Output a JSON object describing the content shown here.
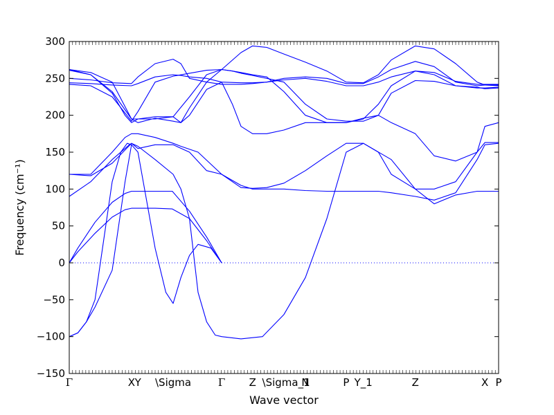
{
  "chart_data": {
    "type": "line",
    "title": "",
    "xlabel": "Wave vector",
    "ylabel": "Frequency (cm⁻¹)",
    "ylim": [
      -150,
      300
    ],
    "xlim": [
      0,
      1
    ],
    "yticks": [
      -150,
      -100,
      -50,
      0,
      50,
      100,
      150,
      200,
      250,
      300
    ],
    "x_labels": [
      {
        "label": "Γ",
        "x": 0.0
      },
      {
        "label": "X",
        "x": 0.145
      },
      {
        "label": "Y",
        "x": 0.16
      },
      {
        "label": "\\Sigma",
        "x": 0.242
      },
      {
        "label": "Γ",
        "x": 0.355
      },
      {
        "label": "Z",
        "x": 0.427
      },
      {
        "label": "\\Sigma_1",
        "x": 0.505
      },
      {
        "label": "N",
        "x": 0.55
      },
      {
        "label": "P",
        "x": 0.645
      },
      {
        "label": "Y_1",
        "x": 0.685
      },
      {
        "label": "Z",
        "x": 0.806
      },
      {
        "label": "X",
        "x": 0.968
      },
      {
        "label": "P",
        "x": 1.0
      }
    ],
    "zero_line": true,
    "line_color": "#0000ff",
    "series": [
      {
        "x": [
          0,
          0.02,
          0.06,
          0.1,
          0.13,
          0.145,
          0.16,
          0.2,
          0.24,
          0.28,
          0.32,
          0.355
        ],
        "values": [
          0,
          15,
          40,
          62,
          72,
          74,
          74,
          74,
          73,
          60,
          30,
          0
        ]
      },
      {
        "x": [
          0,
          0.02,
          0.06,
          0.1,
          0.13,
          0.145,
          0.16,
          0.2,
          0.24,
          0.28,
          0.32,
          0.355
        ],
        "values": [
          0,
          20,
          55,
          82,
          94,
          97,
          97,
          97,
          97,
          70,
          35,
          0
        ]
      },
      {
        "x": [
          0,
          0.02,
          0.04,
          0.06,
          0.1,
          0.13,
          0.145,
          0.16,
          0.2,
          0.225,
          0.242,
          0.26,
          0.28,
          0.3,
          0.33,
          0.355
        ],
        "values": [
          -100,
          -95,
          -80,
          -60,
          -10,
          110,
          160,
          150,
          20,
          -40,
          -55,
          -20,
          10,
          25,
          20,
          0
        ]
      },
      {
        "x": [
          0,
          0.02,
          0.04,
          0.06,
          0.08,
          0.1,
          0.12,
          0.135,
          0.145
        ],
        "values": [
          -100,
          -95,
          -80,
          -50,
          30,
          110,
          150,
          162,
          160
        ]
      },
      {
        "x": [
          0,
          0.05,
          0.1,
          0.14,
          0.145,
          0.16,
          0.2,
          0.242,
          0.26,
          0.28,
          0.3,
          0.32,
          0.34,
          0.355,
          0.4,
          0.45,
          0.5,
          0.55,
          0.6,
          0.645,
          0.685,
          0.75,
          0.806,
          0.85,
          0.9,
          0.95,
          0.968,
          1.0
        ],
        "values": [
          90,
          110,
          140,
          160,
          162,
          158,
          140,
          120,
          100,
          60,
          -40,
          -80,
          -98,
          -100,
          -103,
          -100,
          -70,
          -20,
          60,
          150,
          162,
          140,
          100,
          80,
          92,
          97,
          97,
          97
        ]
      },
      {
        "x": [
          0,
          0.05,
          0.1,
          0.13,
          0.145,
          0.16,
          0.2,
          0.242,
          0.26,
          0.3,
          0.355,
          0.4,
          0.427,
          0.46,
          0.5,
          0.55,
          0.6,
          0.645,
          0.685,
          0.72,
          0.75,
          0.806,
          0.85,
          0.9,
          0.95,
          0.968,
          1.0
        ],
        "values": [
          120,
          120,
          150,
          170,
          175,
          175,
          170,
          162,
          158,
          150,
          120,
          105,
          100,
          100,
          100,
          98,
          97,
          97,
          97,
          97,
          95,
          90,
          85,
          95,
          140,
          160,
          162
        ]
      },
      {
        "x": [
          0,
          0.05,
          0.1,
          0.145,
          0.16,
          0.2,
          0.242,
          0.28,
          0.32,
          0.355,
          0.38,
          0.4,
          0.427,
          0.46,
          0.5,
          0.55,
          0.6,
          0.645,
          0.685,
          0.72,
          0.75,
          0.806,
          0.85,
          0.9,
          0.95,
          0.968,
          1.0
        ],
        "values": [
          120,
          118,
          135,
          162,
          155,
          160,
          160,
          150,
          125,
          120,
          110,
          102,
          101,
          102,
          108,
          125,
          145,
          162,
          162,
          150,
          120,
          100,
          100,
          110,
          150,
          163,
          163
        ]
      },
      {
        "x": [
          0,
          0.05,
          0.1,
          0.13,
          0.145,
          0.16,
          0.2,
          0.242,
          0.28,
          0.32,
          0.355,
          0.38,
          0.4,
          0.427,
          0.46,
          0.5,
          0.55,
          0.6,
          0.645,
          0.685,
          0.72,
          0.75,
          0.806,
          0.85,
          0.9,
          0.95,
          0.968,
          1.0
        ],
        "values": [
          262,
          255,
          230,
          200,
          190,
          195,
          198,
          198,
          225,
          255,
          262,
          260,
          258,
          255,
          252,
          232,
          200,
          190,
          190,
          195,
          215,
          240,
          260,
          255,
          240,
          238,
          236,
          237
        ]
      },
      {
        "x": [
          0,
          0.05,
          0.1,
          0.145,
          0.16,
          0.2,
          0.242,
          0.28,
          0.32,
          0.355,
          0.38,
          0.4,
          0.427,
          0.46,
          0.5,
          0.55,
          0.6,
          0.645,
          0.685,
          0.72,
          0.75,
          0.806,
          0.85,
          0.9,
          0.95,
          0.968,
          1.0
        ],
        "values": [
          242,
          240,
          225,
          192,
          205,
          245,
          253,
          257,
          261,
          262,
          260,
          257,
          254,
          250,
          245,
          215,
          195,
          192,
          192,
          200,
          230,
          247,
          246,
          240,
          237,
          237,
          238
        ]
      },
      {
        "x": [
          0,
          0.05,
          0.1,
          0.145,
          0.16,
          0.2,
          0.242,
          0.26,
          0.28,
          0.32,
          0.355,
          0.4,
          0.427,
          0.46,
          0.5,
          0.55,
          0.6,
          0.645,
          0.685,
          0.72,
          0.75,
          0.806,
          0.85,
          0.9,
          0.95,
          0.968,
          1.0
        ],
        "values": [
          244,
          243,
          241,
          240,
          243,
          252,
          255,
          254,
          252,
          250,
          245,
          244,
          244,
          245,
          248,
          250,
          246,
          240,
          240,
          245,
          252,
          260,
          258,
          246,
          242,
          242,
          242
        ]
      },
      {
        "x": [
          0,
          0.05,
          0.1,
          0.145,
          0.16,
          0.2,
          0.242,
          0.26,
          0.28,
          0.32,
          0.355,
          0.4,
          0.427,
          0.46,
          0.5,
          0.55,
          0.6,
          0.645,
          0.685,
          0.72,
          0.75,
          0.806,
          0.85,
          0.9,
          0.95,
          0.968,
          1.0
        ],
        "values": [
          250,
          248,
          244,
          243,
          252,
          270,
          276,
          270,
          250,
          245,
          242,
          242,
          243,
          245,
          250,
          252,
          250,
          243,
          243,
          252,
          262,
          273,
          266,
          245,
          240,
          241,
          241
        ]
      },
      {
        "x": [
          0,
          0.05,
          0.1,
          0.145,
          0.16,
          0.2,
          0.242,
          0.26,
          0.28,
          0.32,
          0.355,
          0.4,
          0.427,
          0.46,
          0.5,
          0.55,
          0.6,
          0.645,
          0.685,
          0.72,
          0.75,
          0.806,
          0.85,
          0.9,
          0.95,
          0.968,
          1.0
        ],
        "values": [
          262,
          258,
          245,
          195,
          190,
          196,
          192,
          190,
          210,
          245,
          262,
          285,
          294,
          292,
          283,
          272,
          260,
          245,
          244,
          255,
          275,
          294,
          290,
          270,
          245,
          241,
          240
        ]
      },
      {
        "x": [
          0,
          0.05,
          0.1,
          0.145,
          0.2,
          0.242,
          0.26,
          0.28,
          0.32,
          0.355,
          0.38,
          0.4,
          0.427,
          0.46,
          0.5,
          0.55,
          0.6,
          0.645,
          0.685,
          0.72,
          0.75,
          0.806,
          0.85,
          0.9,
          0.95,
          0.968,
          1.0
        ],
        "values": [
          261,
          255,
          232,
          195,
          195,
          198,
          190,
          200,
          235,
          245,
          215,
          185,
          175,
          175,
          180,
          190,
          190,
          190,
          196,
          200,
          190,
          175,
          145,
          138,
          150,
          185,
          190
        ]
      }
    ]
  }
}
